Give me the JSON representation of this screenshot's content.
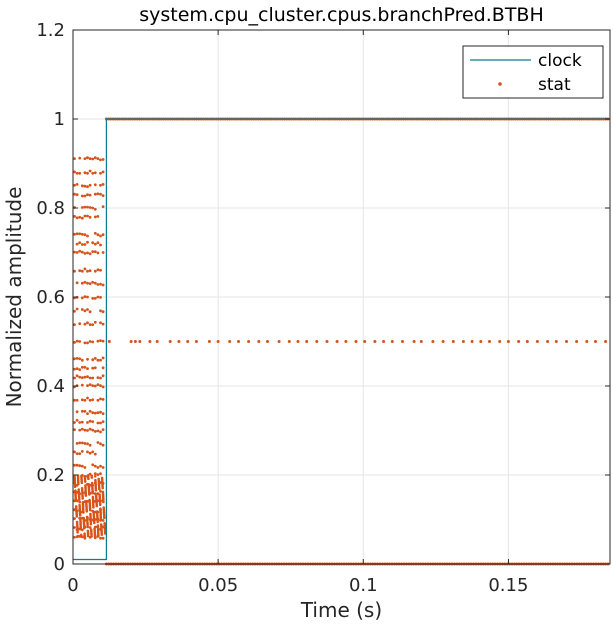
{
  "chart_data": {
    "type": "line",
    "title": "system.cpu_cluster.cpus.branchPred.BTBH",
    "xlabel": "Time (s)",
    "ylabel": "Normalized amplitude",
    "xlim": [
      0,
      0.185
    ],
    "ylim": [
      0,
      1.2
    ],
    "xticks": [
      0,
      0.05,
      0.1,
      0.15
    ],
    "xtick_labels": [
      "0",
      "0.05",
      "0.1",
      "0.15"
    ],
    "yticks": [
      0,
      0.2,
      0.4,
      0.6,
      0.8,
      1,
      1.2
    ],
    "ytick_labels": [
      "0",
      "0.2",
      "0.4",
      "0.6",
      "0.8",
      "1",
      "1.2"
    ],
    "grid": true,
    "legend_location": "top-right",
    "colors": {
      "clock": "#0b7d8c",
      "stat": "#d95319"
    },
    "series": [
      {
        "name": "clock",
        "style": "line",
        "x": [
          0,
          0.0115,
          0.0115,
          0.185
        ],
        "y": [
          0.01,
          0.01,
          1,
          1
        ]
      },
      {
        "name": "stat",
        "style": "dots",
        "levels_early": [
          0.06,
          0.08,
          0.1,
          0.12,
          0.14,
          0.16,
          0.18,
          0.2,
          0.22,
          0.25,
          0.27,
          0.3,
          0.32,
          0.34,
          0.37,
          0.4,
          0.42,
          0.44,
          0.46,
          0.5,
          0.54,
          0.57,
          0.6,
          0.63,
          0.66,
          0.7,
          0.72,
          0.74,
          0.78,
          0.8,
          0.83,
          0.85,
          0.88,
          0.91
        ],
        "early_x_range": [
          0,
          0.0115
        ],
        "late_levels": [
          0,
          0.5,
          1
        ],
        "late_x_range": [
          0.0115,
          0.185
        ]
      }
    ]
  }
}
